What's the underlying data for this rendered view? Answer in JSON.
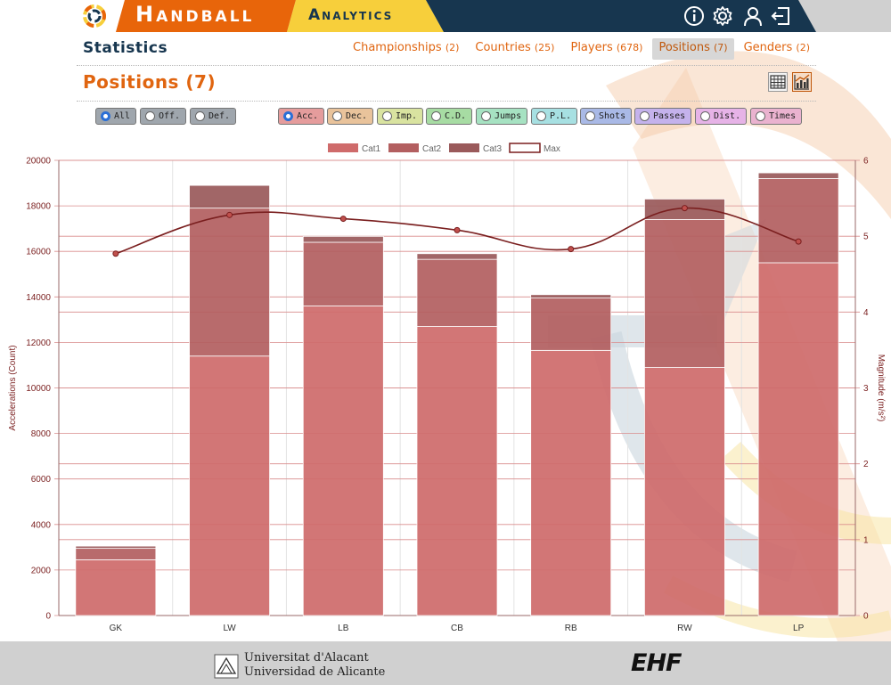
{
  "app": {
    "title": "Handball",
    "subtitle": "Analytics",
    "colors": {
      "orange": "#e8650a",
      "yellow": "#f7cf3b",
      "navy": "#17364f"
    }
  },
  "top_icons": [
    "info-icon",
    "gear-icon",
    "user-icon",
    "logout-icon"
  ],
  "stats": {
    "title": "Statistics",
    "tabs": [
      {
        "label": "Championships",
        "count": "(2)",
        "active": false
      },
      {
        "label": "Countries",
        "count": "(25)",
        "active": false
      },
      {
        "label": "Players",
        "count": "(678)",
        "active": false
      },
      {
        "label": "Positions",
        "count": "(7)",
        "active": true
      },
      {
        "label": "Genders",
        "count": "(2)",
        "active": false
      }
    ]
  },
  "positions": {
    "title": "Positions (7)",
    "view_buttons": [
      "table-view-icon",
      "chart-view-icon"
    ],
    "active_view": "chart"
  },
  "filters": {
    "group": [
      {
        "label": "All",
        "checked": true,
        "color": "#9fa6ad"
      },
      {
        "label": "Off.",
        "checked": false,
        "color": "#9fa6ad"
      },
      {
        "label": "Def.",
        "checked": false,
        "color": "#9fa6ad"
      }
    ],
    "metrics": [
      {
        "label": "Acc.",
        "checked": true,
        "color": "#e59c9c"
      },
      {
        "label": "Dec.",
        "checked": false,
        "color": "#e9c39b"
      },
      {
        "label": "Imp.",
        "checked": false,
        "color": "#d9e3a0"
      },
      {
        "label": "C.D.",
        "checked": false,
        "color": "#a7dca3"
      },
      {
        "label": "Jumps",
        "checked": false,
        "color": "#a6e2c2"
      },
      {
        "label": "P.L.",
        "checked": false,
        "color": "#a7e0e2"
      },
      {
        "label": "Shots",
        "checked": false,
        "color": "#a9b9e6"
      },
      {
        "label": "Passes",
        "checked": false,
        "color": "#c4b2ec"
      },
      {
        "label": "Dist.",
        "checked": false,
        "color": "#e6b3e7"
      },
      {
        "label": "Times",
        "checked": false,
        "color": "#eab2cf"
      }
    ]
  },
  "chart_data": {
    "type": "bar",
    "stacked": true,
    "categories": [
      "GK",
      "LW",
      "LB",
      "CB",
      "RB",
      "RW",
      "LP"
    ],
    "series": [
      {
        "name": "Cat1",
        "type": "bar",
        "color": "#cf6b6b",
        "values": [
          2450,
          11400,
          13600,
          12700,
          11650,
          10900,
          15500
        ]
      },
      {
        "name": "Cat2",
        "type": "bar",
        "color": "#b35f60",
        "values": [
          500,
          6500,
          2800,
          2950,
          2300,
          6500,
          3700
        ]
      },
      {
        "name": "Cat3",
        "type": "bar",
        "color": "#9a5a5b",
        "values": [
          100,
          1000,
          260,
          250,
          150,
          900,
          250
        ]
      },
      {
        "name": "Max",
        "type": "line",
        "axis": "right",
        "color": "#7a1f1f",
        "values": [
          4.77,
          5.28,
          5.23,
          5.08,
          4.83,
          5.37,
          4.93
        ]
      }
    ],
    "ylabel": "Accelerations (Count)",
    "y2label": "Magnitude (m/s²)",
    "ylim": [
      0,
      20000
    ],
    "y2lim": [
      0,
      6
    ],
    "yticks": [
      0,
      2000,
      4000,
      6000,
      8000,
      10000,
      12000,
      14000,
      16000,
      18000,
      20000
    ],
    "y2ticks": [
      0,
      1,
      2,
      3,
      4,
      5,
      6
    ],
    "grid": true,
    "legend": "top-center"
  },
  "footer": {
    "university_line1": "Universitat d'Alacant",
    "university_line2": "Universidad de Alicante",
    "ehf": "EHF"
  }
}
